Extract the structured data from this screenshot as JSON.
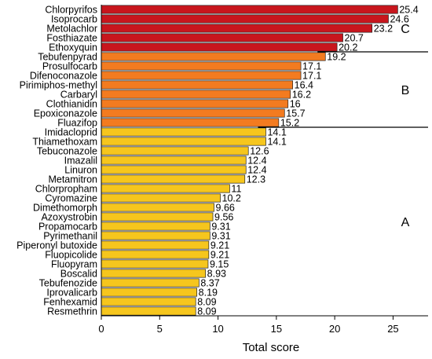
{
  "chart_data": {
    "type": "bar",
    "orientation": "horizontal",
    "title": "",
    "xlabel": "Total score",
    "ylabel": "",
    "xlim": [
      0,
      28
    ],
    "xticks": [
      0,
      5,
      10,
      15,
      20,
      25
    ],
    "grid": false,
    "categories": [
      "Chlorpyrifos",
      "Isoprocarb",
      "Metolachlor",
      "Fosthiazate",
      "Ethoxyquin",
      "Tebufenpyrad",
      "Prosulfocarb",
      "Difenoconazole",
      "Pirimiphos-methyl",
      "Carbaryl",
      "Clothianidin",
      "Epoxiconazole",
      "Fluazifop",
      "Imidacloprid",
      "Thiamethoxam",
      "Tebuconazole",
      "Imazalil",
      "Linuron",
      "Metamitron",
      "Chlorpropham",
      "Cyromazine",
      "Dimethomorph",
      "Azoxystrobin",
      "Propamocarb",
      "Pyrimethanil",
      "Piperonyl butoxide",
      "Fluopicolide",
      "Fluopyram",
      "Boscalid",
      "Tebufenozide",
      "Iprovalicarb",
      "Fenhexamid",
      "Resmethrin"
    ],
    "values": [
      25.4,
      24.6,
      23.2,
      20.7,
      20.2,
      19.2,
      17.1,
      17.1,
      16.4,
      16.2,
      16,
      15.7,
      15.2,
      14.1,
      14.1,
      12.6,
      12.4,
      12.4,
      12.3,
      11,
      10.2,
      9.66,
      9.56,
      9.31,
      9.31,
      9.21,
      9.21,
      9.15,
      8.93,
      8.37,
      8.19,
      8.09,
      8.09
    ],
    "value_labels": [
      "25.4",
      "24.6",
      "23.2",
      "20.7",
      "20.2",
      "19.2",
      "17.1",
      "17.1",
      "16.4",
      "16.2",
      "16",
      "15.7",
      "15.2",
      "14.1",
      "14.1",
      "12.6",
      "12.4",
      "12.4",
      "12.3",
      "11",
      "10.2",
      "9.66",
      "9.56",
      "9.31",
      "9.31",
      "9.21",
      "9.21",
      "9.15",
      "8.93",
      "8.37",
      "8.19",
      "8.09",
      "8.09"
    ],
    "groups": [
      {
        "name": "C",
        "count": 5,
        "color": "#c8161d"
      },
      {
        "name": "B",
        "count": 8,
        "color": "#f37b20"
      },
      {
        "name": "A",
        "count": 20,
        "color": "#f6c61d"
      }
    ]
  }
}
